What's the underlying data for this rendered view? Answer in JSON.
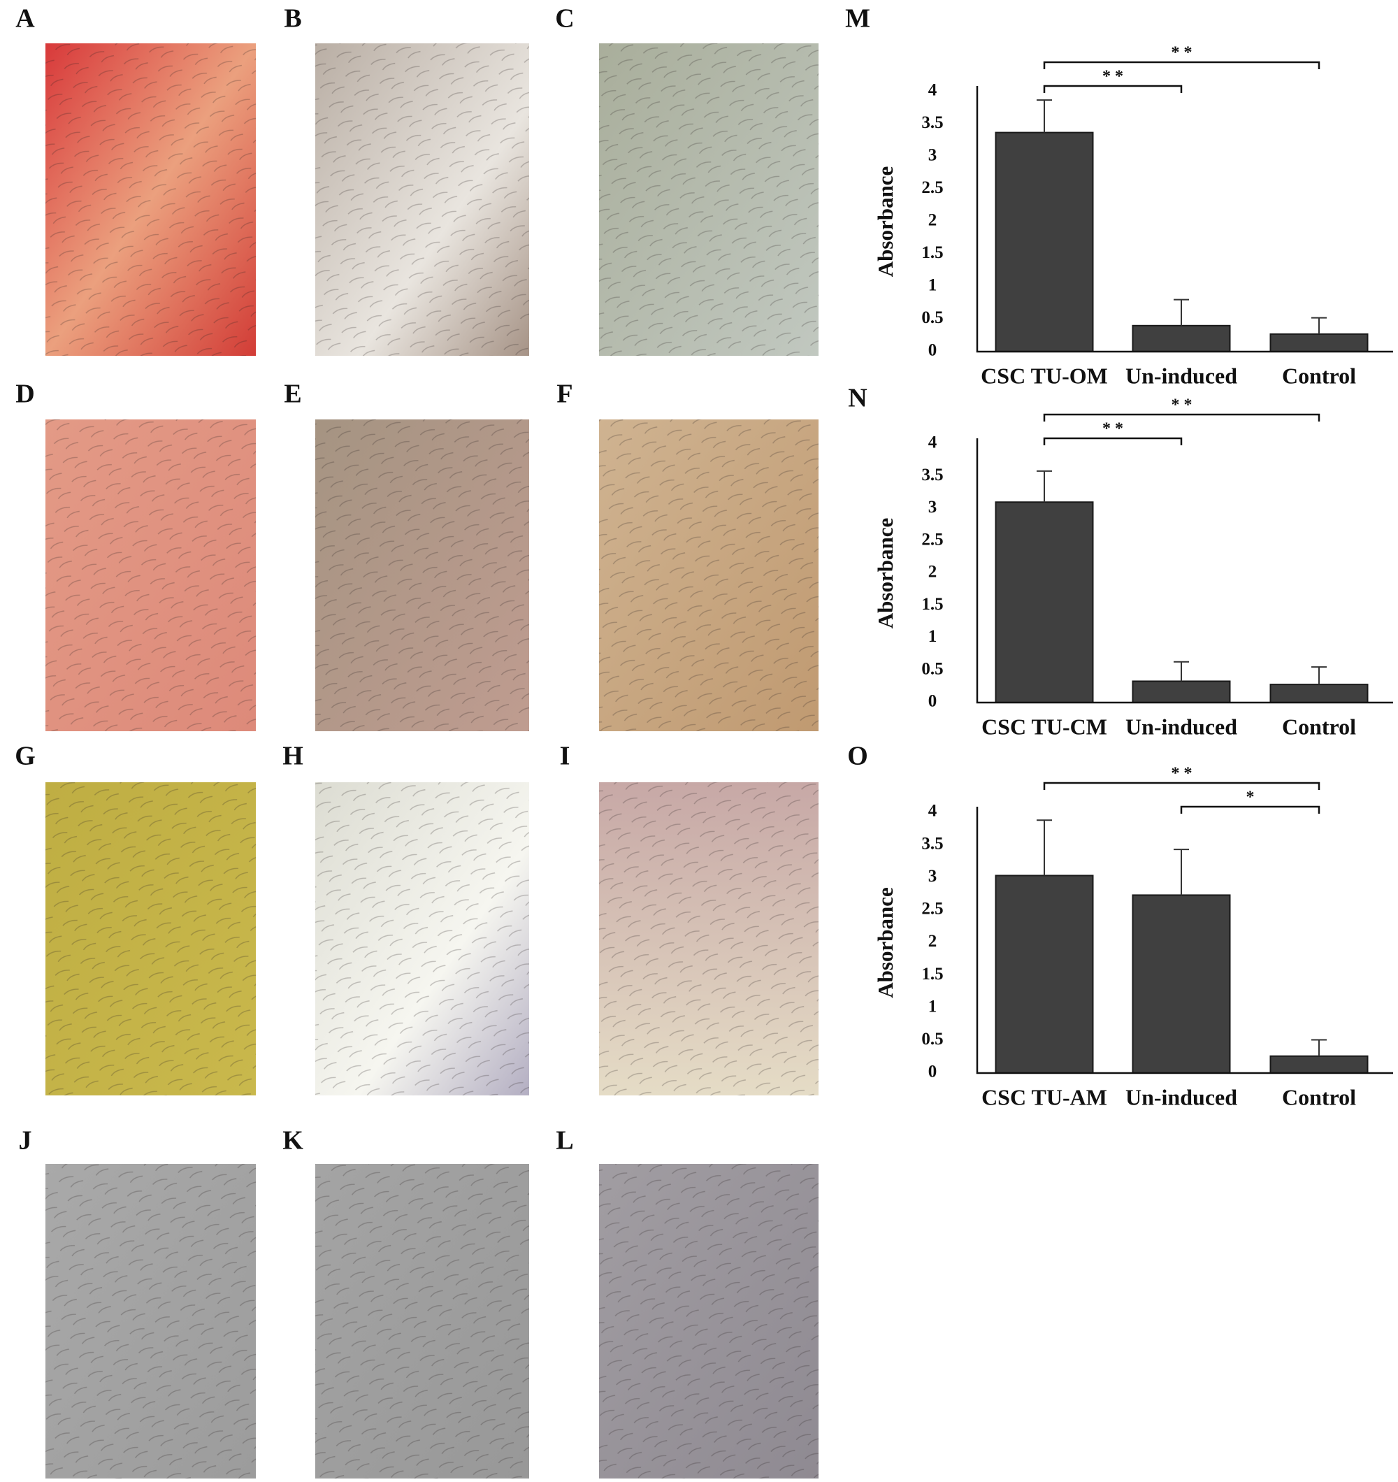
{
  "panels": [
    "A",
    "B",
    "C",
    "D",
    "E",
    "F",
    "G",
    "H",
    "I",
    "J",
    "K",
    "L"
  ],
  "chart_data": [
    {
      "type": "bar",
      "label": "M",
      "y_label": "Absorbance",
      "categories": [
        "CSC TU-OM",
        "Un-induced",
        "Control"
      ],
      "values": [
        3.37,
        0.4,
        0.27
      ],
      "errors": [
        0.5,
        0.4,
        0.25
      ],
      "color": "#404040",
      "ylim": [
        0,
        4
      ],
      "yticks": [
        0,
        0.5,
        1,
        1.5,
        2,
        2.5,
        3,
        3.5,
        4
      ],
      "annotations": [
        {
          "from": 0,
          "to": 2,
          "text": "* *"
        },
        {
          "from": 0,
          "to": 1,
          "text": "* *"
        }
      ]
    },
    {
      "type": "bar",
      "label": "N",
      "y_label": "Absorbance",
      "categories": [
        "CSC TU-CM",
        "Un-induced",
        "Control"
      ],
      "values": [
        3.1,
        0.33,
        0.28
      ],
      "errors": [
        0.48,
        0.3,
        0.27
      ],
      "color": "#404040",
      "ylim": [
        0,
        4
      ],
      "yticks": [
        0,
        0.5,
        1,
        1.5,
        2,
        2.5,
        3,
        3.5,
        4
      ],
      "annotations": [
        {
          "from": 0,
          "to": 2,
          "text": "* *"
        },
        {
          "from": 0,
          "to": 1,
          "text": "* *"
        }
      ]
    },
    {
      "type": "bar",
      "label": "O",
      "y_label": "Absorbance",
      "categories": [
        "CSC TU-AM",
        "Un-induced",
        "Control"
      ],
      "values": [
        3.03,
        2.73,
        0.26
      ],
      "errors": [
        0.85,
        0.7,
        0.25
      ],
      "color": "#404040",
      "ylim": [
        0,
        4
      ],
      "yticks": [
        0,
        0.5,
        1,
        1.5,
        2,
        2.5,
        3,
        3.5,
        4
      ],
      "annotations": [
        {
          "from": 0,
          "to": 2,
          "text": "* *"
        },
        {
          "from": 1,
          "to": 2,
          "text": "*"
        }
      ]
    }
  ]
}
